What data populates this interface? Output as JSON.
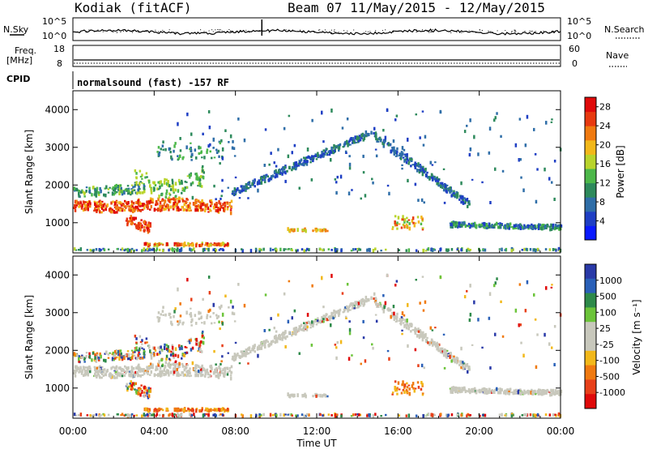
{
  "header": {
    "station": "Kodiak (fitACF)",
    "beam_range": "Beam 07  11/May/2015 - 12/May/2015"
  },
  "panels": {
    "nsky_label": "N.Sky",
    "nsearch_label": "N.Search",
    "freq_label": "Freq.",
    "freq_unit": "[MHz]",
    "nave_label": "Nave",
    "cpid_label": "CPID",
    "cpid_text": "normalsound (fast) -157 RF",
    "noise_ticks_left": [
      "10^5",
      "10^0"
    ],
    "noise_ticks_right": [
      "10^5",
      "10^0"
    ],
    "freq_ticks": [
      "18",
      "8"
    ],
    "nave_ticks": [
      "60",
      "0"
    ]
  },
  "colors": {
    "power_scale": [
      "#0a1aff",
      "#1f3fc4",
      "#2f6ea8",
      "#2e8a5c",
      "#4db84a",
      "#b9d42c",
      "#f2b81a",
      "#f07a10",
      "#e83a10",
      "#e00a0a"
    ],
    "velocity_scale": [
      "#2a3aa8",
      "#2a60b8",
      "#2e8a4a",
      "#6cc43a",
      "#c8c8bc",
      "#c8c8bc",
      "#f2b81a",
      "#f07a10",
      "#e8401a",
      "#e00a0a"
    ],
    "ground_scatter": "#c8c8bc"
  },
  "chart_data": [
    {
      "type": "heatmap",
      "name": "power",
      "ylabel": "Slant Range [km]",
      "yticks": [
        "1000",
        "2000",
        "3000",
        "4000"
      ],
      "ylim": [
        200,
        4500
      ],
      "xlim": [
        0,
        24
      ],
      "colorbar_label": "Power [dB]",
      "colorbar_ticks": [
        "4",
        "8",
        "12",
        "16",
        "20",
        "24",
        "28"
      ],
      "colorbar_range": [
        0,
        30
      ]
    },
    {
      "type": "heatmap",
      "name": "velocity",
      "ylabel": "Slant Range [km]",
      "yticks": [
        "1000",
        "2000",
        "3000",
        "4000"
      ],
      "ylim": [
        200,
        4500
      ],
      "xlim": [
        0,
        24
      ],
      "colorbar_label": "Velocity [m s⁻¹]",
      "colorbar_ticks": [
        "1000",
        "500",
        "100",
        "25",
        "-25",
        "-100",
        "-500",
        "-1000"
      ],
      "xlabel": "Time UT",
      "xticks": [
        "00:00",
        "04:00",
        "08:00",
        "12:00",
        "16:00",
        "20:00",
        "00:00"
      ]
    }
  ]
}
